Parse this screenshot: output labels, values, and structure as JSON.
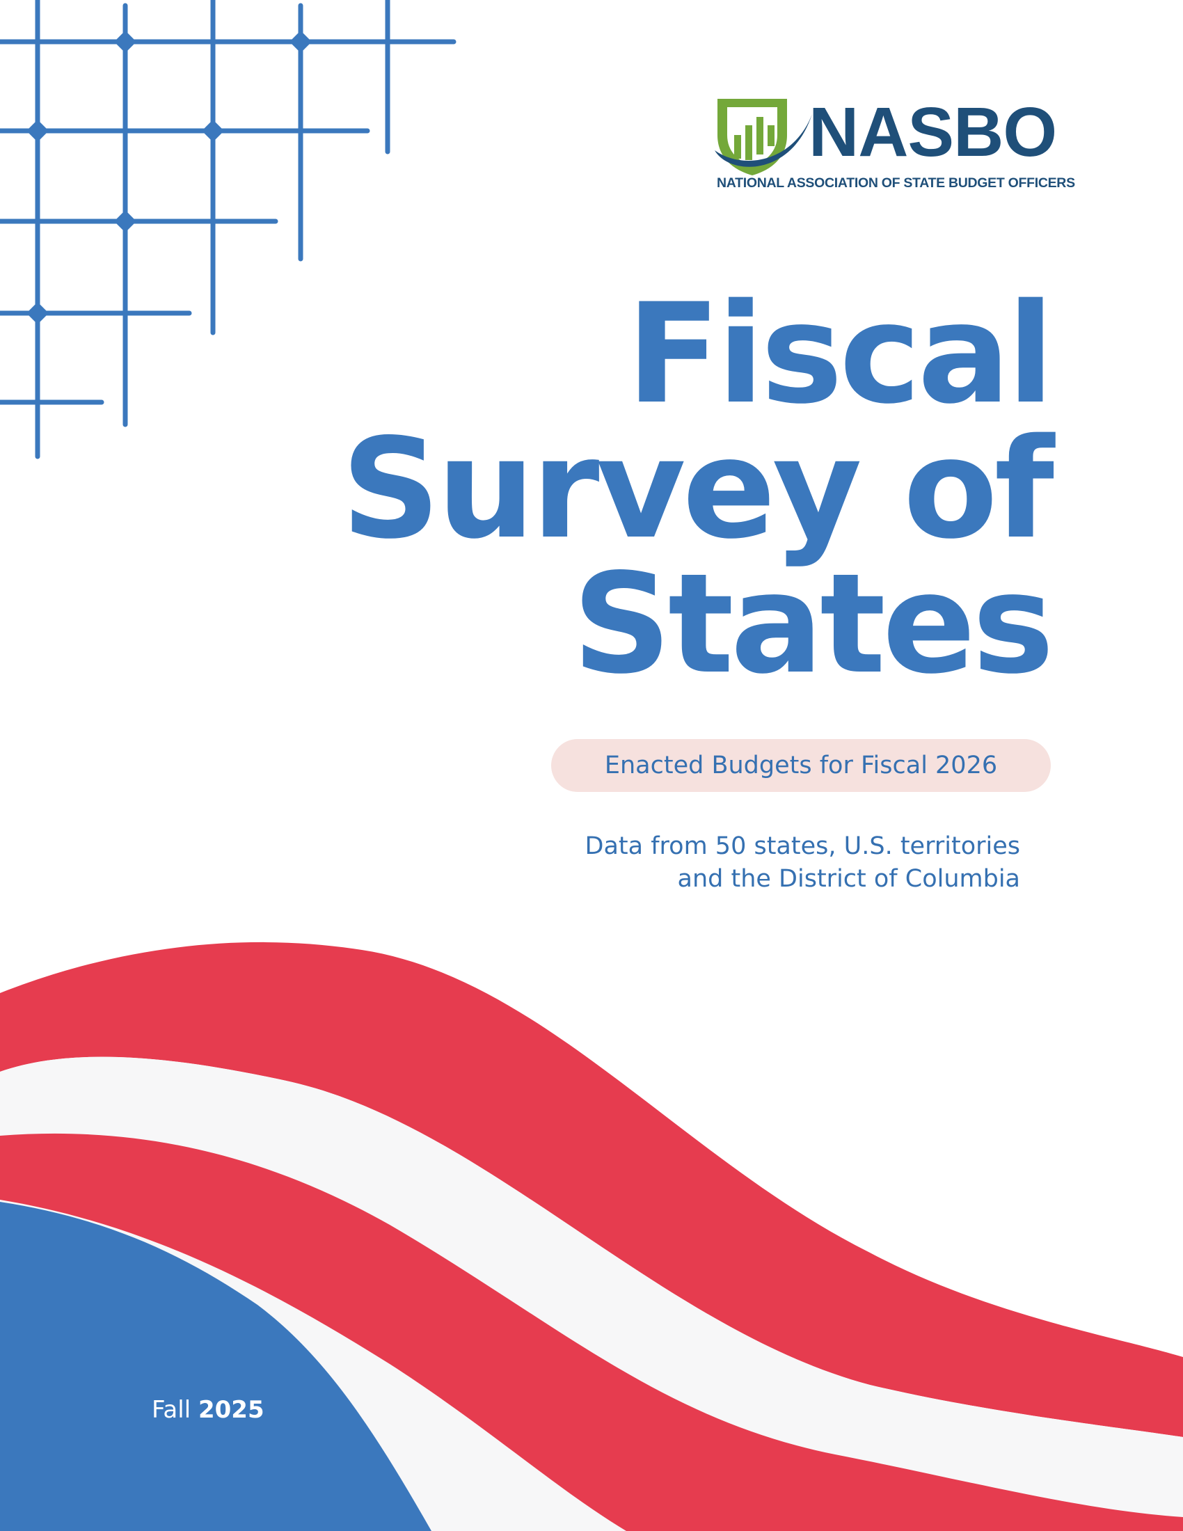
{
  "logo": {
    "wordmark": "NASBO",
    "tagline": "NATIONAL ASSOCIATION OF STATE BUDGET OFFICERS"
  },
  "title": {
    "line1": "Fiscal",
    "line2": "Survey of",
    "line3": "States"
  },
  "subtitle": "Enacted Budgets for Fiscal 2026",
  "description": {
    "line1": "Data from 50 states, U.S. territories",
    "line2": "and the District of Columbia"
  },
  "edition": {
    "season": "Fall",
    "year": "2025"
  },
  "colors": {
    "primary_blue": "#3b78bd",
    "logo_navy": "#1f4f79",
    "logo_green": "#74a83a",
    "stripe_red": "#e63c4f",
    "pill_pink": "#f6e1de"
  },
  "icons": [
    "nasbo-shield-icon",
    "bar-chart-icon"
  ]
}
